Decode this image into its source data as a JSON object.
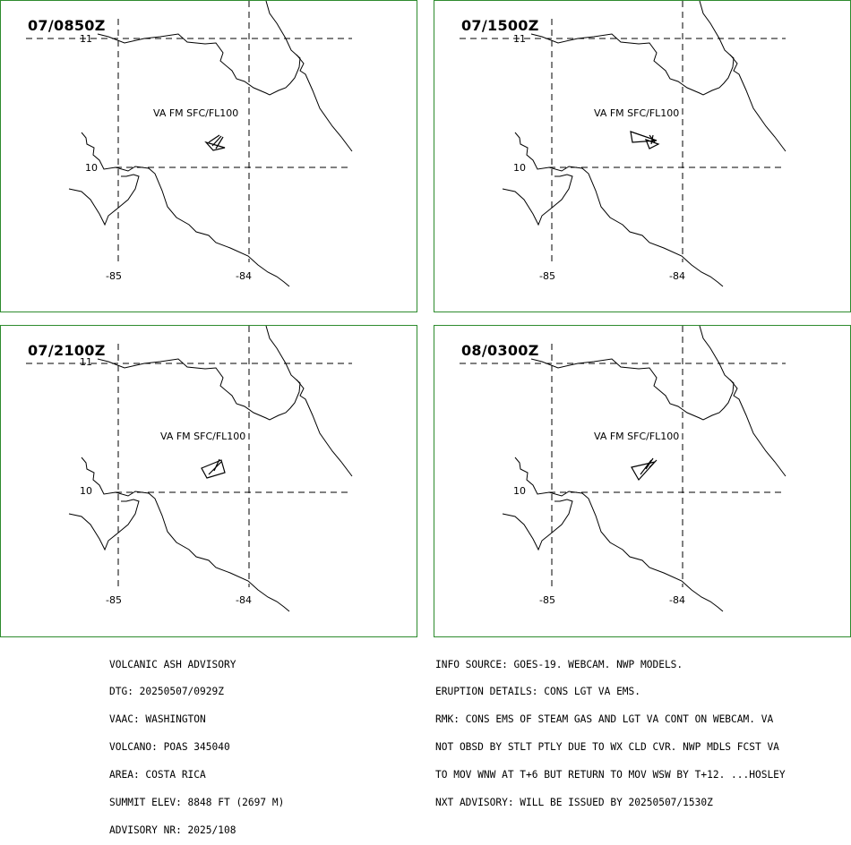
{
  "panels": [
    {
      "time": "07/0850Z",
      "ash_label": "VA FM SFC/FL100"
    },
    {
      "time": "07/1500Z",
      "ash_label": "VA FM SFC/FL100"
    },
    {
      "time": "07/2100Z",
      "ash_label": "VA FM SFC/FL100"
    },
    {
      "time": "08/0300Z",
      "ash_label": "VA FM SFC/FL100"
    }
  ],
  "grid_labels": {
    "lat_top": "11",
    "lat_mid": "10",
    "lon_left": "-85",
    "lon_right": "-84"
  },
  "colors": {
    "panel_border": "#2e8b2e",
    "lines": "#000000"
  },
  "advisory": {
    "lines": [
      "VOLCANIC ASH ADVISORY",
      "DTG: 20250507/0929Z",
      "VAAC: WASHINGTON",
      "VOLCANO: POAS 345040",
      "AREA: COSTA RICA",
      "SUMMIT ELEV: 8848 FT (2697 M)",
      "ADVISORY NR: 2025/108"
    ]
  },
  "remarks": {
    "lines": [
      "INFO SOURCE: GOES-19. WEBCAM. NWP MODELS.",
      "ERUPTION DETAILS: CONS LGT VA EMS.",
      "RMK: CONS EMS OF STEAM GAS AND LGT VA CONT ON WEBCAM. VA",
      "NOT OBSD BY STLT PTLY DUE TO WX CLD CVR. NWP MDLS FCST VA",
      "TO MOV WNW AT T+6 BUT RETURN TO MOV WSW BY T+12. ...HOSLEY",
      "NXT ADVISORY: WILL BE ISSUED BY 20250507/1530Z"
    ]
  }
}
